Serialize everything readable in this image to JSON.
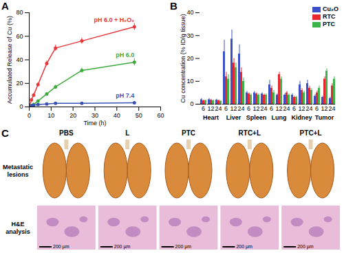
{
  "chart_data": [
    {
      "type": "line",
      "title": "A",
      "x_label": "Time (h)",
      "y_label": "Accumulated Release of Cu (%)",
      "xlim": [
        0,
        60
      ],
      "xticks": [
        0,
        10,
        20,
        30,
        40,
        50,
        60
      ],
      "ylim": [
        0,
        80
      ],
      "yticks": [
        0,
        20,
        40,
        60,
        80
      ],
      "marker": "circle",
      "series": [
        {
          "name": "pH 6.0 + H₂O₂",
          "color": "#e8363a",
          "x": [
            0,
            1,
            2,
            4,
            8,
            12,
            24,
            48
          ],
          "values": [
            0,
            6,
            10,
            19,
            37,
            50,
            56,
            68
          ],
          "errors": [
            0.5,
            1,
            1.5,
            1.5,
            2,
            2.5,
            2.5,
            3
          ]
        },
        {
          "name": "pH 6.0",
          "color": "#3daa3d",
          "x": [
            0,
            1,
            2,
            4,
            8,
            12,
            24,
            48
          ],
          "values": [
            0,
            1,
            2,
            5,
            11,
            17,
            31,
            38
          ],
          "errors": [
            0.5,
            0.5,
            0.5,
            1,
            1,
            1.5,
            2,
            3
          ]
        },
        {
          "name": "pH 7.4",
          "color": "#3a50b4",
          "x": [
            0,
            1,
            2,
            4,
            8,
            12,
            24,
            48
          ],
          "values": [
            0,
            1,
            1.5,
            2,
            2.5,
            3,
            3,
            3.5
          ],
          "errors": [
            0.3,
            0.3,
            0.3,
            0.4,
            0.4,
            0.5,
            0.5,
            0.5
          ]
        }
      ]
    },
    {
      "type": "bar",
      "title": "B",
      "y_label": "Cu concentration (% ID/g tissue)",
      "groups": [
        "Heart",
        "Liver",
        "Spleen",
        "Lung",
        "Kidney",
        "Tumor"
      ],
      "categories": [
        "6",
        "12",
        "24",
        "6",
        "12",
        "24",
        "6",
        "12",
        "24",
        "6",
        "12",
        "24",
        "6",
        "12",
        "24",
        "6",
        "12",
        "24"
      ],
      "ylim": [
        0,
        40
      ],
      "yticks": [
        0,
        10,
        20,
        30,
        40
      ],
      "legend": "top-right",
      "series": [
        {
          "name": "Cu₂O",
          "color": "#3a50c8",
          "values": [
            2,
            2,
            1.8,
            23,
            28.5,
            22,
            5,
            5,
            4.5,
            8.5,
            4,
            4,
            4,
            8.5,
            9,
            3.5,
            3,
            2.5
          ],
          "errors": [
            0.5,
            0.5,
            0.4,
            5,
            4,
            4,
            0.6,
            0.6,
            0.5,
            2,
            0.6,
            0.6,
            0.6,
            1.5,
            1.5,
            0.6,
            0.5,
            0.5
          ]
        },
        {
          "name": "RTC",
          "color": "#e8282e",
          "values": [
            1.5,
            1.8,
            1.5,
            12,
            18,
            14,
            4.5,
            4.5,
            4,
            7,
            13,
            5,
            3,
            6,
            7,
            5,
            11,
            8
          ],
          "errors": [
            0.4,
            0.4,
            0.4,
            2,
            2,
            2,
            0.5,
            0.5,
            0.5,
            1,
            1,
            0.6,
            0.5,
            0.8,
            0.8,
            0.8,
            1,
            1
          ]
        },
        {
          "name": "PTC",
          "color": "#3cb44b",
          "values": [
            1.5,
            1.5,
            1.3,
            11,
            16,
            10,
            4,
            4,
            4,
            5,
            11,
            4,
            3,
            5,
            6,
            7,
            14.5,
            11
          ],
          "errors": [
            0.4,
            0.4,
            0.3,
            2,
            2,
            1.5,
            0.5,
            0.5,
            0.5,
            1,
            1,
            0.5,
            0.5,
            0.8,
            0.8,
            1,
            1,
            1
          ]
        }
      ]
    }
  ],
  "panel_c": {
    "title": "C",
    "columns": [
      "PBS",
      "L",
      "PTC",
      "RTC+L",
      "PTC+L"
    ],
    "rows": [
      "Metastatic lesions",
      "H&E analysis"
    ],
    "scale_bar": "200 μm"
  }
}
